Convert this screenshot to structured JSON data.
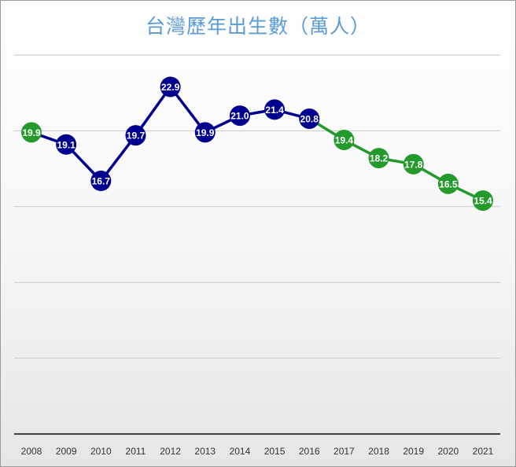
{
  "chart_data": {
    "type": "line",
    "title": "台灣歷年出生數（萬人）",
    "categories": [
      "2008",
      "2009",
      "2010",
      "2011",
      "2012",
      "2013",
      "2014",
      "2015",
      "2016",
      "2017",
      "2018",
      "2019",
      "2020",
      "2021"
    ],
    "values": [
      19.9,
      19.1,
      16.7,
      19.7,
      22.9,
      19.9,
      21.0,
      21.4,
      20.8,
      19.4,
      18.2,
      17.8,
      16.5,
      15.4
    ],
    "data_labels": [
      "19.9",
      "19.1",
      "16.7",
      "19.7",
      "22.9",
      "19.9",
      "21.0",
      "21.4",
      "20.8",
      "19.4",
      "18.2",
      "17.8",
      "16.5",
      "15.4"
    ],
    "point_colors": [
      "green",
      "blue",
      "blue",
      "blue",
      "blue",
      "blue",
      "blue",
      "blue",
      "blue",
      "green",
      "green",
      "green",
      "green",
      "green"
    ],
    "ylim": [
      0,
      25
    ],
    "y_gridlines": [
      5,
      10,
      15,
      20,
      25
    ],
    "y_tick_labels_shown": false,
    "grid": true,
    "legend": "none",
    "xlabel": "",
    "ylabel": "",
    "colors": {
      "blue": "#00008e",
      "green": "#259a2c",
      "title": "#5b9bd5",
      "grid": "#c8c8c8",
      "axis": "#404040"
    }
  }
}
